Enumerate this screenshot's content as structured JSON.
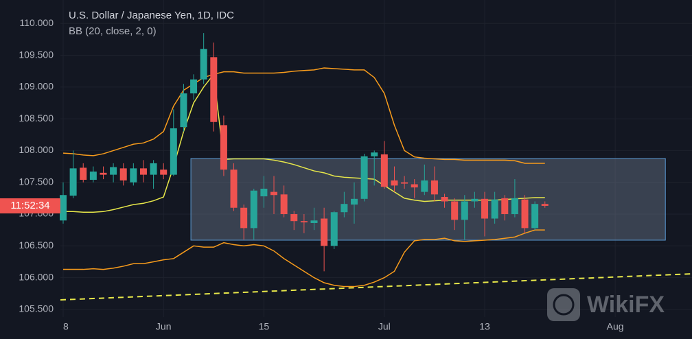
{
  "chart_data": {
    "type": "candlestick",
    "title": "U.S. Dollar / Japanese Yen, 1D, IDC",
    "subtitle": "BB (20, close, 2, 0)",
    "categories": [
      "8",
      null,
      null,
      null,
      null,
      null,
      null,
      null,
      null,
      null,
      "Jun",
      null,
      null,
      null,
      null,
      null,
      null,
      null,
      null,
      null,
      "15",
      null,
      null,
      null,
      null,
      null,
      null,
      null,
      null,
      null,
      null,
      null,
      "Jul",
      null,
      null,
      null,
      null,
      null,
      null,
      null,
      null,
      null,
      "13",
      null,
      null,
      null,
      null,
      null,
      null,
      null,
      null,
      null,
      null,
      null,
      null,
      "Aug",
      null,
      null,
      null,
      null,
      null,
      null,
      null
    ],
    "open": [
      106.9,
      107.29,
      107.73,
      107.54,
      107.65,
      107.62,
      107.72,
      107.5,
      107.72,
      107.62,
      107.7,
      107.62,
      108.37,
      108.9,
      109.12,
      109.47,
      108.4,
      107.7,
      107.1,
      106.78,
      107.28,
      107.35,
      107.31,
      107.0,
      106.89,
      106.86,
      106.93,
      106.5,
      107.03,
      107.15,
      107.24,
      107.91,
      107.94,
      107.53,
      107.5,
      107.47,
      107.35,
      107.53,
      107.27,
      107.2,
      106.91,
      107.2,
      107.24,
      106.93,
      107.25,
      107.0,
      107.23,
      106.78,
      107.16,
      null,
      null,
      null,
      null,
      null,
      null,
      null,
      null,
      null,
      null,
      null,
      null,
      null,
      null
    ],
    "high": [
      107.5,
      108.0,
      107.8,
      107.75,
      107.75,
      107.8,
      107.8,
      107.8,
      107.85,
      107.85,
      107.8,
      108.65,
      109.05,
      109.2,
      109.85,
      109.7,
      108.55,
      107.8,
      107.15,
      107.4,
      107.6,
      107.6,
      107.45,
      107.05,
      107.0,
      107.1,
      107.1,
      107.05,
      107.35,
      107.5,
      107.95,
      108.0,
      108.15,
      107.75,
      107.6,
      107.55,
      107.78,
      107.75,
      107.32,
      107.25,
      107.3,
      107.35,
      107.35,
      107.35,
      107.3,
      107.55,
      107.3,
      107.2,
      107.2,
      null,
      null,
      null,
      null,
      null,
      null,
      null,
      null,
      null,
      null,
      null,
      null,
      null,
      null
    ],
    "low": [
      106.85,
      107.25,
      107.5,
      107.5,
      107.55,
      107.5,
      107.45,
      107.45,
      107.5,
      107.4,
      107.55,
      107.6,
      108.3,
      108.8,
      109.05,
      108.3,
      107.6,
      107.05,
      106.6,
      106.6,
      107.1,
      107.0,
      106.95,
      106.75,
      106.7,
      106.75,
      106.1,
      106.45,
      106.95,
      106.85,
      107.2,
      107.45,
      107.4,
      107.35,
      107.4,
      107.25,
      107.3,
      107.2,
      107.1,
      106.75,
      106.6,
      107.1,
      106.65,
      106.85,
      106.9,
      106.95,
      106.7,
      106.75,
      107.1,
      null,
      null,
      null,
      null,
      null,
      null,
      null,
      null,
      null,
      null,
      null,
      null,
      null,
      null
    ],
    "close": [
      107.3,
      107.72,
      107.54,
      107.67,
      107.62,
      107.74,
      107.53,
      107.72,
      107.62,
      107.8,
      107.62,
      108.35,
      108.9,
      109.12,
      109.6,
      108.45,
      107.7,
      107.1,
      106.78,
      107.37,
      107.4,
      107.3,
      107.0,
      106.89,
      106.87,
      106.9,
      106.5,
      107.03,
      107.16,
      107.24,
      107.91,
      107.97,
      107.43,
      107.45,
      107.48,
      107.42,
      107.53,
      107.31,
      107.2,
      106.91,
      107.2,
      107.24,
      106.93,
      107.23,
      107.0,
      107.25,
      106.78,
      107.16,
      107.13,
      null,
      null,
      null,
      null,
      null,
      null,
      null,
      null,
      null,
      null,
      null,
      null,
      null,
      null
    ],
    "up_color": "#26a69a",
    "down_color": "#ef5350",
    "series": [
      {
        "color": "#f89c1c",
        "values": [
          107.96,
          107.95,
          107.93,
          107.92,
          107.95,
          108.0,
          108.05,
          108.1,
          108.12,
          108.18,
          108.3,
          108.7,
          108.95,
          109.05,
          109.15,
          109.2,
          109.24,
          109.24,
          109.22,
          109.22,
          109.22,
          109.22,
          109.23,
          109.25,
          109.26,
          109.27,
          109.3,
          109.29,
          109.28,
          109.27,
          109.27,
          109.15,
          108.9,
          108.4,
          108.0,
          107.9,
          107.88,
          107.87,
          107.86,
          107.86,
          107.85,
          107.85,
          107.85,
          107.85,
          107.85,
          107.84,
          107.8,
          107.8,
          107.8,
          null,
          null,
          null,
          null,
          null,
          null,
          null,
          null,
          null,
          null,
          null,
          null,
          null,
          null
        ]
      },
      {
        "color": "#e8e84a",
        "values": [
          107.04,
          107.04,
          107.03,
          107.03,
          107.04,
          107.07,
          107.11,
          107.15,
          107.17,
          107.21,
          107.27,
          107.75,
          108.3,
          108.75,
          109.0,
          109.2,
          107.86,
          107.87,
          107.87,
          107.87,
          107.87,
          107.85,
          107.82,
          107.78,
          107.73,
          107.68,
          107.65,
          107.6,
          107.58,
          107.57,
          107.56,
          107.55,
          107.45,
          107.35,
          107.25,
          107.22,
          107.2,
          107.21,
          107.22,
          107.22,
          107.22,
          107.22,
          107.22,
          107.22,
          107.23,
          107.24,
          107.25,
          107.26,
          107.26,
          null,
          null,
          null,
          null,
          null,
          null,
          null,
          null,
          null,
          null,
          null,
          null,
          null,
          null
        ]
      },
      {
        "color": "#f89c1c",
        "values": [
          106.13,
          106.13,
          106.13,
          106.14,
          106.13,
          106.15,
          106.18,
          106.22,
          106.22,
          106.25,
          106.28,
          106.3,
          106.4,
          106.5,
          106.48,
          106.48,
          106.55,
          106.52,
          106.5,
          106.52,
          106.5,
          106.42,
          106.3,
          106.2,
          106.1,
          106.0,
          105.92,
          105.88,
          105.86,
          105.86,
          105.88,
          105.93,
          106.0,
          106.1,
          106.4,
          106.58,
          106.6,
          106.6,
          106.62,
          106.58,
          106.57,
          106.58,
          106.59,
          106.6,
          106.62,
          106.64,
          106.7,
          106.75,
          106.75,
          null,
          null,
          null,
          null,
          null,
          null,
          null,
          null,
          null,
          null,
          null,
          null,
          null,
          null
        ]
      }
    ],
    "range_box": {
      "high": 107.875,
      "low": 106.59
    },
    "price_label": "11:52:34",
    "watermark": "WikiFX",
    "ylim": [
      105.38,
      110.37
    ],
    "yticks": [
      {
        "value": 110,
        "label": "110.000"
      },
      {
        "value": 109.5,
        "label": "109.500"
      },
      {
        "value": 109,
        "label": "109.000"
      },
      {
        "value": 108.5,
        "label": "108.500"
      },
      {
        "value": 108,
        "label": "108.000"
      },
      {
        "value": 107.5,
        "label": "107.500"
      },
      {
        "value": 107,
        "label": "107.000"
      },
      {
        "value": 106.5,
        "label": "106.500"
      },
      {
        "value": 106,
        "label": "106.000"
      },
      {
        "value": 105.5,
        "label": "105.500"
      }
    ],
    "grid": true
  }
}
